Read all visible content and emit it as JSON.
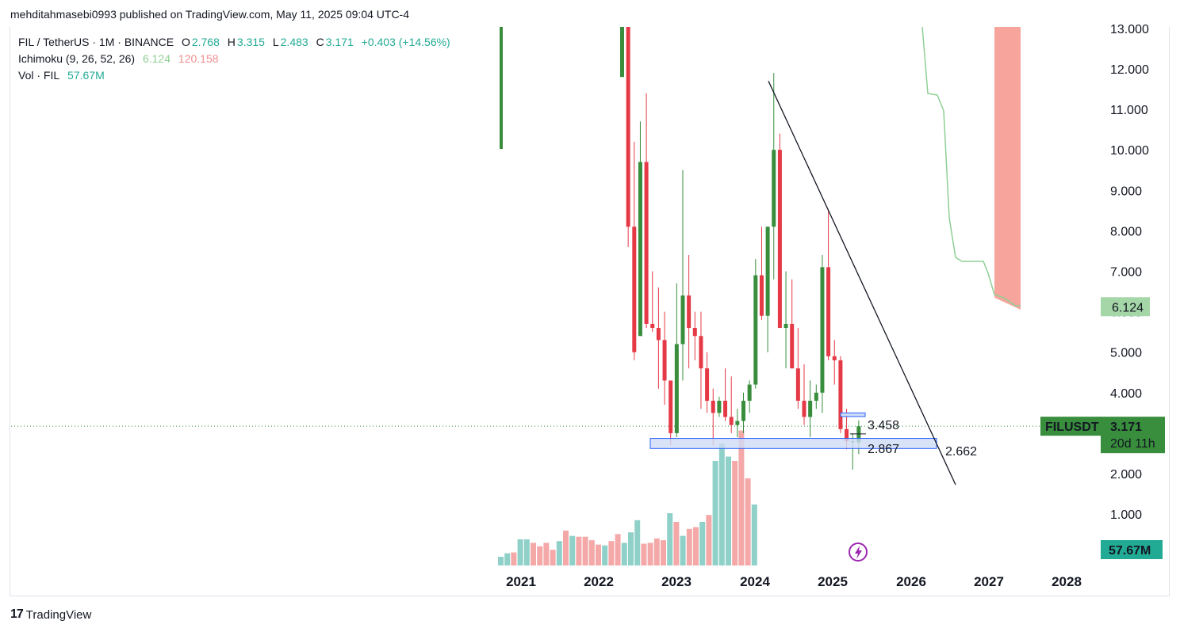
{
  "header": {
    "published_line": "mehditahmasebi0993 published on TradingView.com, May 11, 2025 09:04 UTC-4"
  },
  "legend": {
    "symbol_line": "FIL / TetherUS · 1M · BINANCE",
    "open_label": "O",
    "open": "2.768",
    "high_label": "H",
    "high": "3.315",
    "low_label": "L",
    "low": "2.483",
    "close_label": "C",
    "close": "3.171",
    "change": "+0.403 (+14.56%)",
    "ichimoku_label": "Ichimoku (9, 26, 52, 26)",
    "ichimoku_a": "6.124",
    "ichimoku_b": "120.158",
    "vol_label": "Vol · FIL",
    "vol_value": "57.67M"
  },
  "colors": {
    "up": "#388e3c",
    "down": "#e53946",
    "vol_up": "#8fd0c8",
    "vol_down": "#f4a8a8",
    "cloud": "#f7a59c",
    "span_line": "#8fcf94",
    "zone_fill": "#cfdcf5",
    "zone_stroke": "#2962ff",
    "price_tag": "#388e3c",
    "vol_tag": "#22ab94",
    "ichi_tag": "#a5d6a7"
  },
  "chart_data": {
    "type": "candlestick",
    "symbol": "FIL / TetherUS",
    "interval": "1M",
    "exchange": "BINANCE",
    "y_axis": {
      "ticks": [
        "1.000",
        "2.000",
        "3.000",
        "4.000",
        "5.000",
        "6.000",
        "7.000",
        "8.000",
        "9.000",
        "10.000",
        "11.000",
        "12.000",
        "13.000"
      ],
      "range": [
        0,
        13.3
      ]
    },
    "x_axis": {
      "ticks": [
        "2021",
        "2022",
        "2023",
        "2024",
        "2025",
        "2026",
        "2027",
        "2028"
      ]
    },
    "candles": [
      {
        "t": "2022-05",
        "o": 11.8,
        "h": 13.2,
        "l": 11.8,
        "c": 13.2
      },
      {
        "t": "2022-06",
        "o": 13.2,
        "h": 13.3,
        "l": 7.6,
        "c": 8.1
      },
      {
        "t": "2022-07",
        "o": 8.1,
        "h": 10.2,
        "l": 4.8,
        "c": 5.0
      },
      {
        "t": "2022-08",
        "o": 5.4,
        "h": 10.7,
        "l": 5.4,
        "c": 9.7
      },
      {
        "t": "2022-09",
        "o": 9.7,
        "h": 11.4,
        "l": 5.6,
        "c": 5.7
      },
      {
        "t": "2022-10",
        "o": 5.7,
        "h": 7.0,
        "l": 5.5,
        "c": 5.6
      },
      {
        "t": "2022-11",
        "o": 5.6,
        "h": 6.6,
        "l": 4.1,
        "c": 5.3
      },
      {
        "t": "2022-12",
        "o": 5.3,
        "h": 6.0,
        "l": 3.7,
        "c": 4.3
      },
      {
        "t": "2023-01",
        "o": 4.3,
        "h": 4.3,
        "l": 2.7,
        "c": 3.0
      },
      {
        "t": "2023-02",
        "o": 3.0,
        "h": 6.7,
        "l": 2.9,
        "c": 5.2
      },
      {
        "t": "2023-03",
        "o": 5.2,
        "h": 9.5,
        "l": 4.3,
        "c": 6.4
      },
      {
        "t": "2023-04",
        "o": 6.4,
        "h": 7.4,
        "l": 4.6,
        "c": 5.6
      },
      {
        "t": "2023-05",
        "o": 5.6,
        "h": 6.0,
        "l": 4.8,
        "c": 5.4
      },
      {
        "t": "2023-06",
        "o": 5.4,
        "h": 6.0,
        "l": 3.6,
        "c": 4.6
      },
      {
        "t": "2023-07",
        "o": 4.6,
        "h": 5.0,
        "l": 3.5,
        "c": 3.8
      },
      {
        "t": "2023-08",
        "o": 3.8,
        "h": 4.1,
        "l": 2.7,
        "c": 3.5
      },
      {
        "t": "2023-09",
        "o": 3.5,
        "h": 3.9,
        "l": 3.4,
        "c": 3.8
      },
      {
        "t": "2023-10",
        "o": 3.8,
        "h": 4.6,
        "l": 3.3,
        "c": 3.4
      },
      {
        "t": "2023-11",
        "o": 3.4,
        "h": 4.4,
        "l": 3.0,
        "c": 3.2
      },
      {
        "t": "2023-12",
        "o": 3.2,
        "h": 3.6,
        "l": 2.9,
        "c": 3.3
      },
      {
        "t": "2024-01",
        "o": 3.3,
        "h": 4.0,
        "l": 3.0,
        "c": 3.8
      },
      {
        "t": "2024-02",
        "o": 3.8,
        "h": 4.3,
        "l": 3.5,
        "c": 4.2
      },
      {
        "t": "2024-03",
        "o": 4.2,
        "h": 7.3,
        "l": 4.1,
        "c": 6.9
      },
      {
        "t": "2024-04",
        "o": 6.9,
        "h": 8.1,
        "l": 5.8,
        "c": 5.9
      },
      {
        "t": "2024-05",
        "o": 5.9,
        "h": 8.1,
        "l": 5.0,
        "c": 8.1
      },
      {
        "t": "2024-06",
        "o": 8.1,
        "h": 11.9,
        "l": 6.8,
        "c": 10.0
      },
      {
        "t": "2024-07",
        "o": 10.0,
        "h": 10.4,
        "l": 5.6,
        "c": 5.6
      },
      {
        "t": "2024-08",
        "o": 5.6,
        "h": 7.0,
        "l": 4.6,
        "c": 5.7
      },
      {
        "t": "2024-09",
        "o": 5.7,
        "h": 6.8,
        "l": 4.6,
        "c": 4.6
      },
      {
        "t": "2024-10",
        "o": 4.6,
        "h": 5.6,
        "l": 3.6,
        "c": 3.8
      },
      {
        "t": "2024-11",
        "o": 3.8,
        "h": 4.7,
        "l": 3.2,
        "c": 3.4
      },
      {
        "t": "2024-12",
        "o": 3.4,
        "h": 4.3,
        "l": 2.9,
        "c": 3.8
      },
      {
        "t": "2025-01",
        "o": 3.8,
        "h": 4.2,
        "l": 3.6,
        "c": 4.0
      },
      {
        "t": "2025-02",
        "o": 4.0,
        "h": 7.4,
        "l": 3.5,
        "c": 7.1
      },
      {
        "t": "2025-03",
        "o": 7.1,
        "h": 8.5,
        "l": 4.8,
        "c": 4.9
      },
      {
        "t": "2025-04",
        "o": 4.9,
        "h": 5.3,
        "l": 4.2,
        "c": 4.8
      },
      {
        "t": "2025-05",
        "o": 4.8,
        "h": 4.9,
        "l": 3.0,
        "c": 3.1
      },
      {
        "t": "2025-06",
        "o": 3.1,
        "h": 3.6,
        "l": 2.6,
        "c": 2.8
      },
      {
        "t": "2025-07",
        "o": 2.8,
        "h": 3.0,
        "l": 2.1,
        "c": 2.8
      },
      {
        "t": "2025-08",
        "o": 2.768,
        "h": 3.315,
        "l": 2.483,
        "c": 3.171
      }
    ],
    "volume": [
      {
        "v": 0.1,
        "up": true
      },
      {
        "v": 0.14,
        "up": true
      },
      {
        "v": 0.15,
        "up": false
      },
      {
        "v": 0.3,
        "up": true
      },
      {
        "v": 0.3,
        "up": true
      },
      {
        "v": 0.26,
        "up": false
      },
      {
        "v": 0.22,
        "up": false
      },
      {
        "v": 0.26,
        "up": false
      },
      {
        "v": 0.18,
        "up": false
      },
      {
        "v": 0.28,
        "up": true
      },
      {
        "v": 0.4,
        "up": false
      },
      {
        "v": 0.34,
        "up": true
      },
      {
        "v": 0.33,
        "up": false
      },
      {
        "v": 0.33,
        "up": false
      },
      {
        "v": 0.29,
        "up": false
      },
      {
        "v": 0.24,
        "up": false
      },
      {
        "v": 0.23,
        "up": true
      },
      {
        "v": 0.28,
        "up": false
      },
      {
        "v": 0.36,
        "up": false
      },
      {
        "v": 0.26,
        "up": true
      },
      {
        "v": 0.38,
        "up": true
      },
      {
        "v": 0.52,
        "up": true
      },
      {
        "v": 0.25,
        "up": false
      },
      {
        "v": 0.26,
        "up": false
      },
      {
        "v": 0.31,
        "up": false
      },
      {
        "v": 0.29,
        "up": false
      },
      {
        "v": 0.6,
        "up": true
      },
      {
        "v": 0.5,
        "up": false
      },
      {
        "v": 0.34,
        "up": true
      },
      {
        "v": 0.42,
        "up": false
      },
      {
        "v": 0.44,
        "up": false
      },
      {
        "v": 0.5,
        "up": true
      },
      {
        "v": 0.58,
        "up": false
      },
      {
        "v": 1.2,
        "up": true
      },
      {
        "v": 1.4,
        "up": true
      },
      {
        "v": 1.25,
        "up": true
      },
      {
        "v": 1.2,
        "up": false
      },
      {
        "v": 1.55,
        "up": false
      },
      {
        "v": 1.0,
        "up": false
      },
      {
        "v": 0.7,
        "up": true
      }
    ],
    "annotations": {
      "resistance_level": "3.458",
      "support_level": "2.867",
      "trendline_target": "2.662",
      "support_zone": [
        2.62,
        2.87
      ],
      "resistance_zone": [
        3.41,
        3.5
      ],
      "trendline": {
        "from": {
          "t": "2024-06",
          "price": 11.7
        },
        "to_price_label": "2.662"
      }
    },
    "ichimoku": {
      "leading_span_a_last": "6.124",
      "leading_span_b": "120.158"
    },
    "price_tag": {
      "symbol": "FILUSDT",
      "price": "3.171",
      "countdown": "20d 11h"
    },
    "ichimoku_tag": "6.124",
    "volume_tag": "57.67M",
    "grid": false,
    "legend_position": "top-left"
  },
  "footer": {
    "logo_mark": "17",
    "logo_text": "TradingView"
  }
}
